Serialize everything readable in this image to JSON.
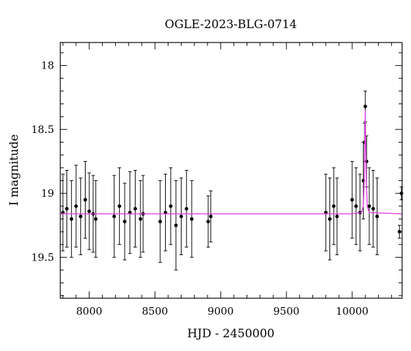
{
  "chart_data": {
    "type": "scatter",
    "title": "OGLE-2023-BLG-0714",
    "xlabel": "HJD - 2450000",
    "ylabel": "I magnitude",
    "xlim": [
      7780,
      10380
    ],
    "ylim": [
      19.82,
      17.82
    ],
    "y_inverted": true,
    "x_ticks": [
      8000,
      8500,
      9000,
      9500,
      10000
    ],
    "x_tick_labels": [
      "8000",
      "8500",
      "9000",
      "9500",
      "10000"
    ],
    "y_ticks": [
      18,
      18.5,
      19,
      19.5
    ],
    "y_tick_labels": [
      "18",
      "18.5",
      "19",
      "19.5"
    ],
    "grid": false,
    "colors": {
      "points": "#000000",
      "model": "#e040e0"
    },
    "series": [
      {
        "type": "scatter-errorbar",
        "x": [
          7800,
          7830,
          7865,
          7900,
          7935,
          7970,
          8000,
          8030,
          8050,
          8190,
          8230,
          8270,
          8310,
          8350,
          8390,
          8410,
          8540,
          8580,
          8620,
          8660,
          8700,
          8740,
          8780,
          8905,
          8925,
          9800,
          9830,
          9860,
          9885,
          10000,
          10030,
          10060,
          10085,
          10095,
          10100,
          10110,
          10130,
          10160,
          10190,
          10360,
          10375
        ],
        "y": [
          19.15,
          19.12,
          19.2,
          19.1,
          19.18,
          19.05,
          19.14,
          19.16,
          19.2,
          19.18,
          19.1,
          19.22,
          19.15,
          19.12,
          19.2,
          19.16,
          19.22,
          19.15,
          19.1,
          19.25,
          19.18,
          19.12,
          19.2,
          19.22,
          19.18,
          19.15,
          19.2,
          19.1,
          19.18,
          19.05,
          19.1,
          19.15,
          18.9,
          18.6,
          18.32,
          18.75,
          19.1,
          19.12,
          19.18,
          19.3,
          19.0
        ],
        "yerr": [
          0.3,
          0.3,
          0.3,
          0.32,
          0.3,
          0.3,
          0.3,
          0.3,
          0.3,
          0.32,
          0.3,
          0.3,
          0.32,
          0.3,
          0.3,
          0.3,
          0.32,
          0.3,
          0.3,
          0.35,
          0.3,
          0.3,
          0.3,
          0.2,
          0.2,
          0.3,
          0.32,
          0.3,
          0.3,
          0.3,
          0.3,
          0.3,
          0.3,
          0.15,
          0.12,
          0.2,
          0.3,
          0.3,
          0.3,
          0.05,
          0.05
        ]
      },
      {
        "type": "line",
        "x": [
          7780,
          10000,
          10070,
          10085,
          10092,
          10097,
          10100,
          10103,
          10108,
          10115,
          10130,
          10380
        ],
        "y": [
          19.16,
          19.16,
          19.15,
          19.1,
          18.9,
          18.6,
          18.35,
          18.6,
          18.9,
          19.1,
          19.15,
          19.16
        ]
      }
    ]
  }
}
